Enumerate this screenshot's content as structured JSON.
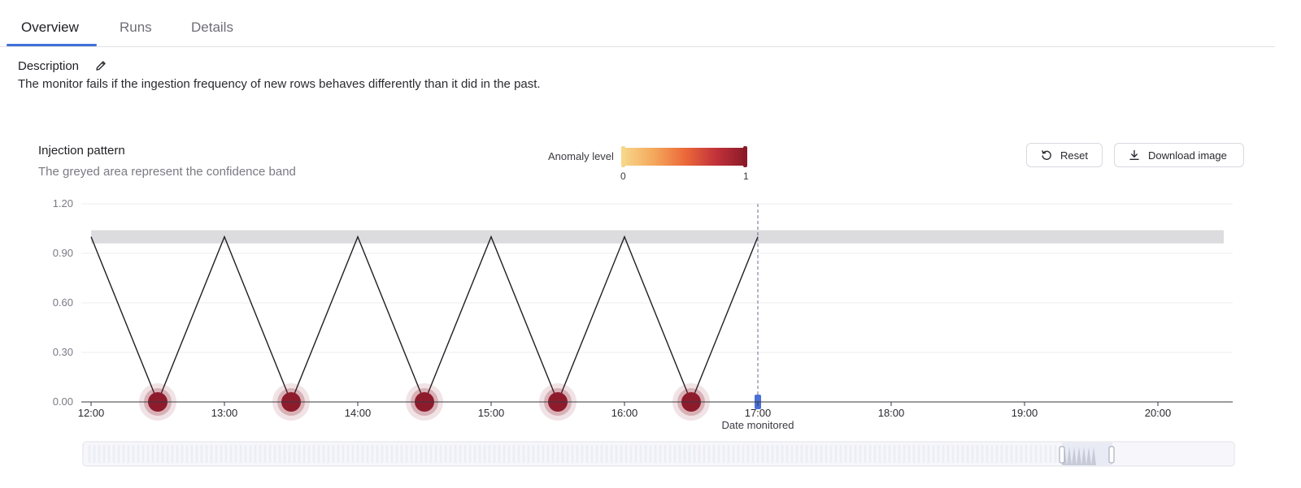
{
  "tabs": [
    {
      "label": "Overview",
      "active": true
    },
    {
      "label": "Runs",
      "active": false
    },
    {
      "label": "Details",
      "active": false
    }
  ],
  "description": {
    "title": "Description",
    "text": "The monitor fails if the ingestion frequency of new rows behaves differently than it did in the past."
  },
  "chart_header": {
    "title": "Injection pattern",
    "subtitle": "The greyed area represent the confidence band"
  },
  "legend": {
    "label": "Anomaly level",
    "min": "0",
    "max": "1",
    "colors": [
      "#f7d68a",
      "#f4a85c",
      "#ec6a3a",
      "#c2323a",
      "#8a1a28"
    ]
  },
  "buttons": {
    "reset": "Reset",
    "download": "Download image"
  },
  "colors": {
    "accent": "#3f6fd8",
    "anomaly": "#8e1b2c",
    "band": "#dcdcdf",
    "line": "#1f1f24",
    "marker": "#4a6fd6"
  },
  "chart_data": {
    "type": "line",
    "title": "Injection pattern",
    "xlabel": "",
    "ylabel": "",
    "ylim": [
      0,
      1.2
    ],
    "xlim": [
      "12:00",
      "20:30"
    ],
    "y_ticks": [
      "0.00",
      "0.30",
      "0.60",
      "0.90",
      "1.20"
    ],
    "x_ticks": [
      "12:00",
      "13:00",
      "14:00",
      "15:00",
      "16:00",
      "17:00",
      "18:00",
      "19:00",
      "20:00"
    ],
    "series": [
      {
        "x": [
          "12:00",
          "12:30",
          "13:00",
          "13:30",
          "14:00",
          "14:30",
          "15:00",
          "15:30",
          "16:00",
          "16:30",
          "17:00"
        ],
        "y": [
          1.0,
          0.0,
          1.0,
          0.0,
          1.0,
          0.0,
          1.0,
          0.0,
          1.0,
          0.0,
          1.0
        ]
      }
    ],
    "confidence_band": {
      "x_start": "12:00",
      "x_end": "20:30",
      "y_low": 0.96,
      "y_high": 1.04
    },
    "anomalies": [
      {
        "x": "12:30",
        "y": 0.0,
        "level": 1
      },
      {
        "x": "13:30",
        "y": 0.0,
        "level": 1
      },
      {
        "x": "14:30",
        "y": 0.0,
        "level": 1
      },
      {
        "x": "15:30",
        "y": 0.0,
        "level": 1
      },
      {
        "x": "16:30",
        "y": 0.0,
        "level": 1
      }
    ],
    "date_monitored": {
      "x": "17:00",
      "label": "Date monitored"
    },
    "grid": true
  }
}
